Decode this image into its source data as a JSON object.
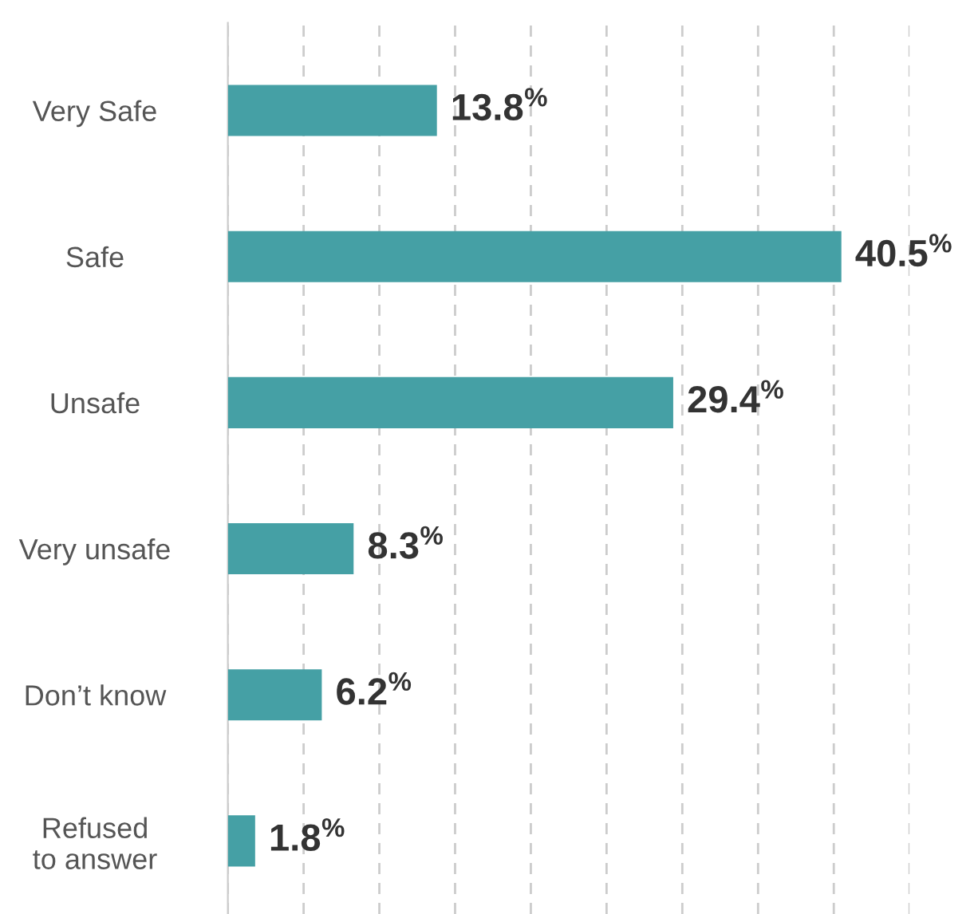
{
  "chart_data": {
    "type": "bar",
    "orientation": "horizontal",
    "categories": [
      "Very Safe",
      "Safe",
      "Unsafe",
      "Very unsafe",
      "Don’t know",
      "Refused\nto answer"
    ],
    "values": [
      13.8,
      40.5,
      29.4,
      8.3,
      6.2,
      1.8
    ],
    "value_labels": [
      "13.8$^{%}$",
      "40.5$^{%}$",
      "29.4$^{%}$",
      "8.3$^{%}$",
      "6.2$^{%}$",
      "1.8$^{%}$"
    ],
    "color": "#45a0a5",
    "xlim": [
      0,
      45
    ],
    "xticks": [
      {
        "value": 0,
        "label": null
      },
      {
        "value": 5,
        "label": null
      },
      {
        "value": 10,
        "label": null
      },
      {
        "value": 15,
        "label": null
      },
      {
        "value": 20,
        "label": null
      },
      {
        "value": 25,
        "label": null
      },
      {
        "value": 30,
        "label": null
      },
      {
        "value": 35,
        "label": null
      },
      {
        "value": 40,
        "label": null
      },
      {
        "value": 45,
        "label": null
      }
    ],
    "grid": "x",
    "tick_labels": "y"
  }
}
